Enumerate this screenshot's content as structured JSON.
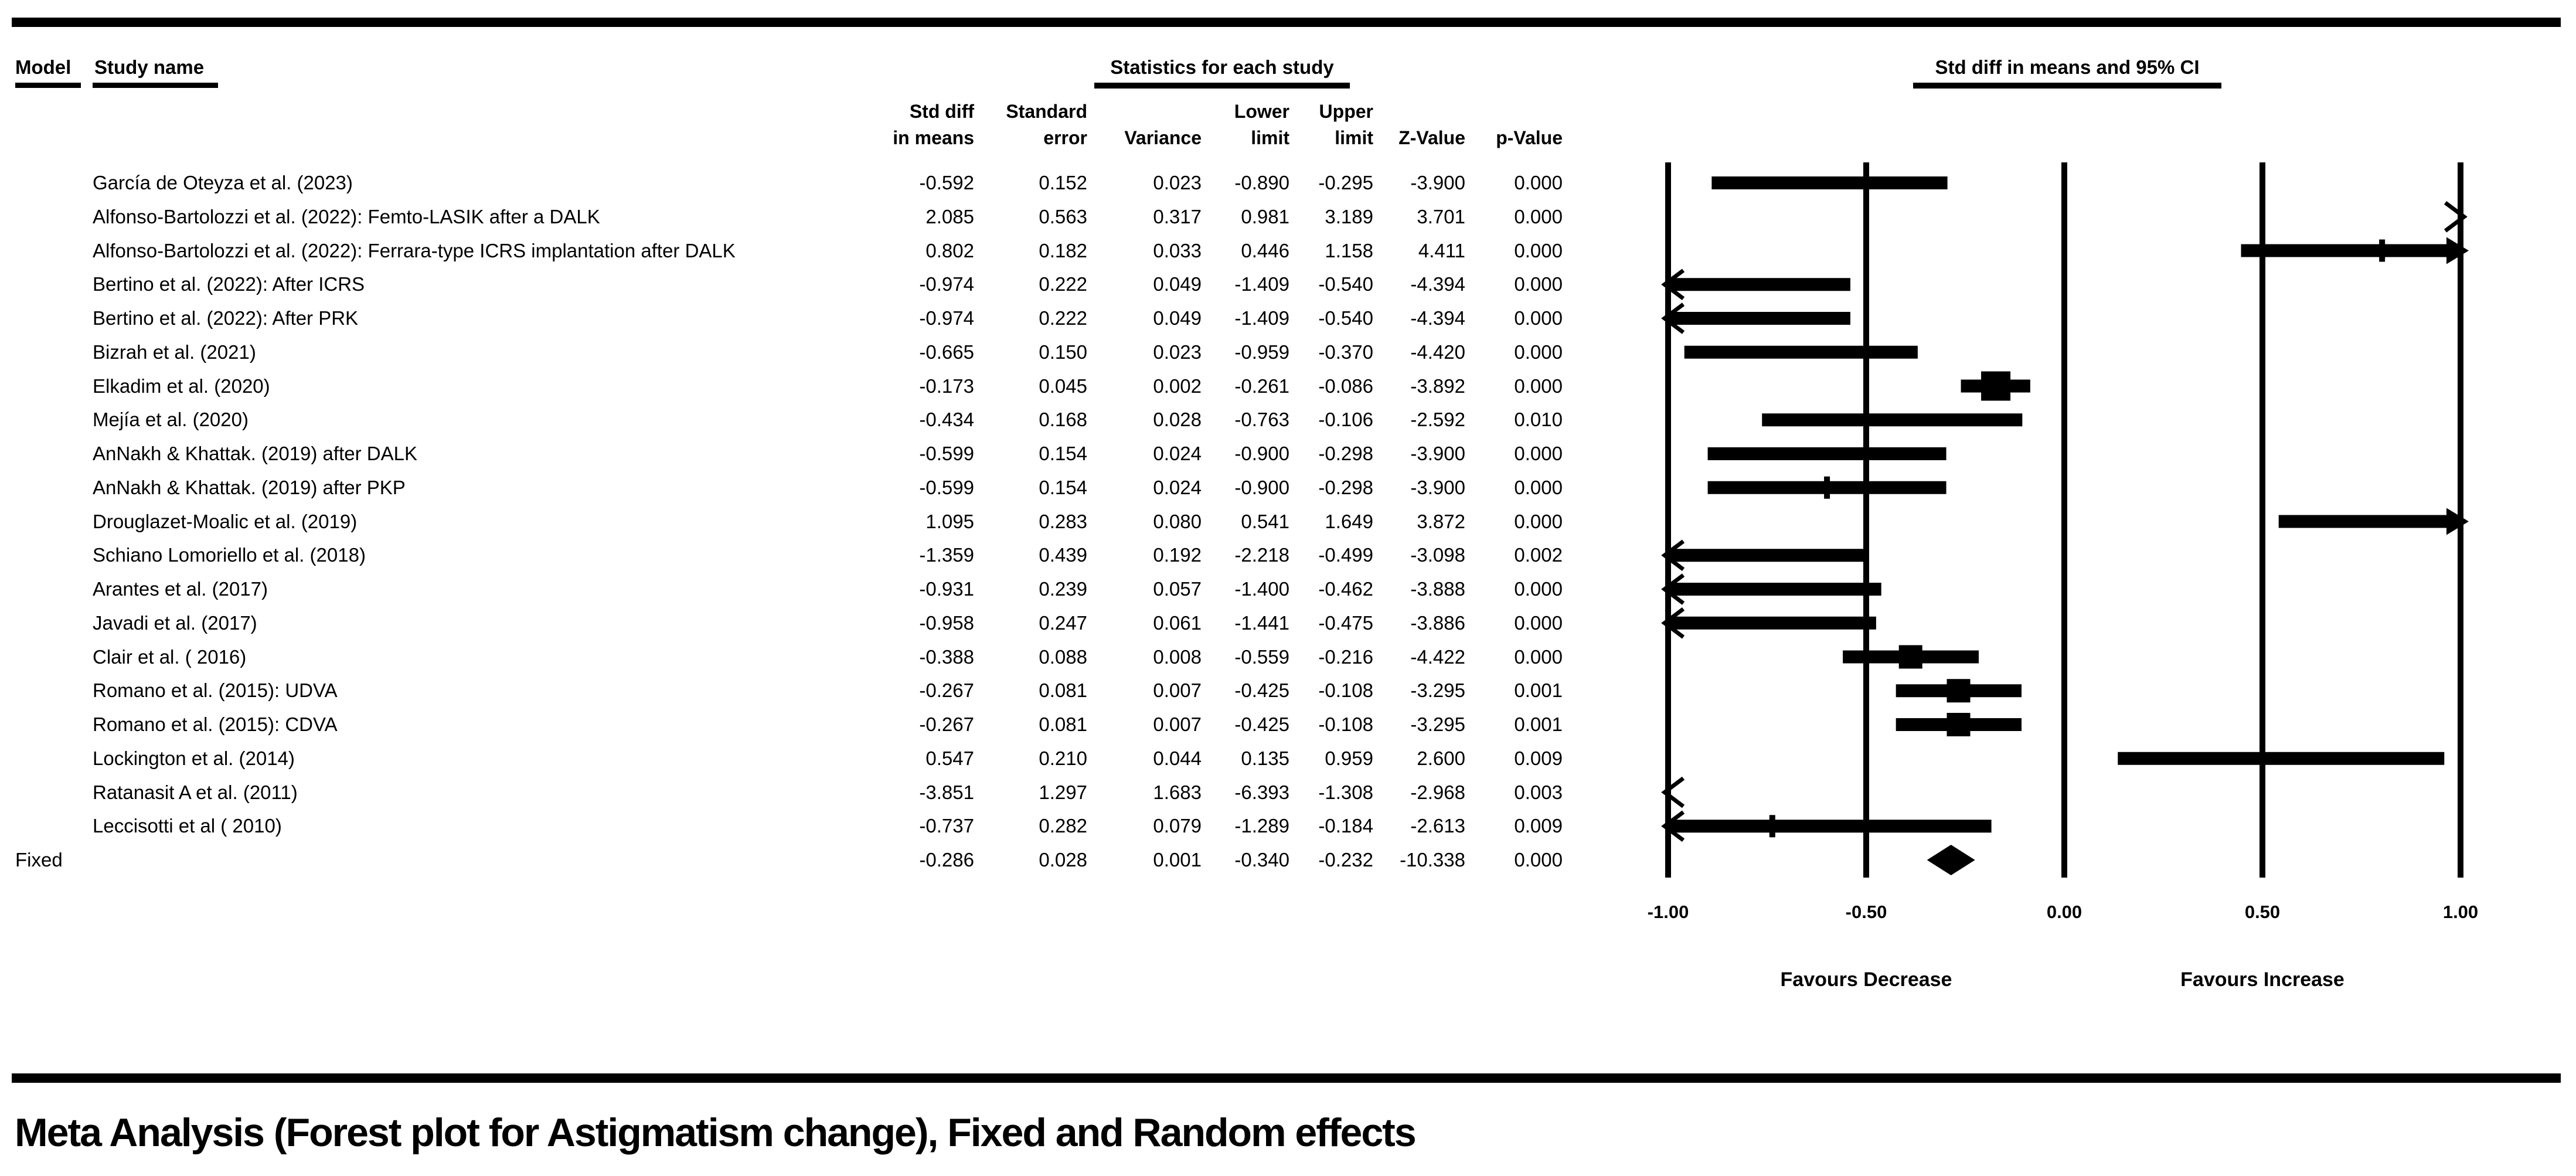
{
  "colors": {
    "ink": "#000000",
    "background": "#ffffff"
  },
  "header": {
    "model_label": "Model",
    "study_name_label": "Study name",
    "stats_group_label": "Statistics for each study",
    "ci_group_label": "Std diff in means and 95% CI"
  },
  "columns": [
    {
      "line1": "Std diff",
      "line2": "in means"
    },
    {
      "line1": "Standard",
      "line2": "error"
    },
    {
      "line1": "",
      "line2": "Variance"
    },
    {
      "line1": "Lower",
      "line2": "limit"
    },
    {
      "line1": "Upper",
      "line2": "limit"
    },
    {
      "line1": "",
      "line2": "Z-Value"
    },
    {
      "line1": "",
      "line2": "p-Value"
    }
  ],
  "studies": [
    {
      "name": "García de Oteyza et al. (2023)",
      "model_row": false,
      "shape": "bar",
      "marker": "none",
      "cells": [
        "-0.592",
        "0.152",
        "0.023",
        "-0.890",
        "-0.295",
        "-3.900",
        "0.000"
      ],
      "est": -0.592,
      "lo": -0.89,
      "hi": -0.295
    },
    {
      "name": "Alfonso-Bartolozzi et al. (2022): Femto-LASIK after a DALK",
      "model_row": false,
      "shape": "bar",
      "marker": "none",
      "cells": [
        "2.085",
        "0.563",
        "0.317",
        "0.981",
        "3.189",
        "3.701",
        "0.000"
      ],
      "est": 2.085,
      "lo": 0.981,
      "hi": 3.189
    },
    {
      "name": "Alfonso-Bartolozzi et al. (2022): Ferrara-type ICRS implantation after  DALK",
      "model_row": false,
      "shape": "bar",
      "marker": "tick",
      "cells": [
        "0.802",
        "0.182",
        "0.033",
        "0.446",
        "1.158",
        "4.411",
        "0.000"
      ],
      "est": 0.802,
      "lo": 0.446,
      "hi": 1.158
    },
    {
      "name": "Bertino et al. (2022): After ICRS",
      "model_row": false,
      "shape": "bar",
      "marker": "none",
      "cells": [
        "-0.974",
        "0.222",
        "0.049",
        "-1.409",
        "-0.540",
        "-4.394",
        "0.000"
      ],
      "est": -0.974,
      "lo": -1.409,
      "hi": -0.54
    },
    {
      "name": "Bertino et al. (2022): After PRK",
      "model_row": false,
      "shape": "bar",
      "marker": "none",
      "cells": [
        "-0.974",
        "0.222",
        "0.049",
        "-1.409",
        "-0.540",
        "-4.394",
        "0.000"
      ],
      "est": -0.974,
      "lo": -1.409,
      "hi": -0.54
    },
    {
      "name": "Bizrah et al. (2021)",
      "model_row": false,
      "shape": "bar",
      "marker": "none",
      "cells": [
        "-0.665",
        "0.150",
        "0.023",
        "-0.959",
        "-0.370",
        "-4.420",
        "0.000"
      ],
      "est": -0.665,
      "lo": -0.959,
      "hi": -0.37
    },
    {
      "name": "Elkadim et al. (2020)",
      "model_row": false,
      "shape": "bar",
      "marker": "large",
      "cells": [
        "-0.173",
        "0.045",
        "0.002",
        "-0.261",
        "-0.086",
        "-3.892",
        "0.000"
      ],
      "est": -0.173,
      "lo": -0.261,
      "hi": -0.086
    },
    {
      "name": "Mejía et al. (2020)",
      "model_row": false,
      "shape": "bar",
      "marker": "none",
      "cells": [
        "-0.434",
        "0.168",
        "0.028",
        "-0.763",
        "-0.106",
        "-2.592",
        "0.010"
      ],
      "est": -0.434,
      "lo": -0.763,
      "hi": -0.106
    },
    {
      "name": "AnNakh & Khattak. (2019) after DALK",
      "model_row": false,
      "shape": "bar",
      "marker": "none",
      "cells": [
        "-0.599",
        "0.154",
        "0.024",
        "-0.900",
        "-0.298",
        "-3.900",
        "0.000"
      ],
      "est": -0.599,
      "lo": -0.9,
      "hi": -0.298
    },
    {
      "name": "AnNakh & Khattak. (2019) after PKP",
      "model_row": false,
      "shape": "bar",
      "marker": "tick",
      "cells": [
        "-0.599",
        "0.154",
        "0.024",
        "-0.900",
        "-0.298",
        "-3.900",
        "0.000"
      ],
      "est": -0.599,
      "lo": -0.9,
      "hi": -0.298
    },
    {
      "name": "Drouglazet-Moalic et al. (2019)",
      "model_row": false,
      "shape": "bar",
      "marker": "none",
      "cells": [
        "1.095",
        "0.283",
        "0.080",
        "0.541",
        "1.649",
        "3.872",
        "0.000"
      ],
      "est": 1.095,
      "lo": 0.541,
      "hi": 1.649
    },
    {
      "name": "Schiano Lomoriello et al. (2018)",
      "model_row": false,
      "shape": "bar",
      "marker": "none",
      "cells": [
        "-1.359",
        "0.439",
        "0.192",
        "-2.218",
        "-0.499",
        "-3.098",
        "0.002"
      ],
      "est": -1.359,
      "lo": -2.218,
      "hi": -0.499
    },
    {
      "name": "Arantes et al. (2017)",
      "model_row": false,
      "shape": "bar",
      "marker": "none",
      "cells": [
        "-0.931",
        "0.239",
        "0.057",
        "-1.400",
        "-0.462",
        "-3.888",
        "0.000"
      ],
      "est": -0.931,
      "lo": -1.4,
      "hi": -0.462
    },
    {
      "name": "Javadi et al. (2017)",
      "model_row": false,
      "shape": "bar",
      "marker": "none",
      "cells": [
        "-0.958",
        "0.247",
        "0.061",
        "-1.441",
        "-0.475",
        "-3.886",
        "0.000"
      ],
      "est": -0.958,
      "lo": -1.441,
      "hi": -0.475
    },
    {
      "name": "Clair et al. ( 2016)",
      "model_row": false,
      "shape": "bar",
      "marker": "medium",
      "cells": [
        "-0.388",
        "0.088",
        "0.008",
        "-0.559",
        "-0.216",
        "-4.422",
        "0.000"
      ],
      "est": -0.388,
      "lo": -0.559,
      "hi": -0.216
    },
    {
      "name": "Romano et al. (2015): UDVA",
      "model_row": false,
      "shape": "bar",
      "marker": "medium",
      "cells": [
        "-0.267",
        "0.081",
        "0.007",
        "-0.425",
        "-0.108",
        "-3.295",
        "0.001"
      ],
      "est": -0.267,
      "lo": -0.425,
      "hi": -0.108
    },
    {
      "name": "Romano et al. (2015): CDVA",
      "model_row": false,
      "shape": "bar",
      "marker": "medium",
      "cells": [
        "-0.267",
        "0.081",
        "0.007",
        "-0.425",
        "-0.108",
        "-3.295",
        "0.001"
      ],
      "est": -0.267,
      "lo": -0.425,
      "hi": -0.108
    },
    {
      "name": "Lockington et al. (2014)",
      "model_row": false,
      "shape": "bar",
      "marker": "none",
      "cells": [
        "0.547",
        "0.210",
        "0.044",
        "0.135",
        "0.959",
        "2.600",
        "0.009"
      ],
      "est": 0.547,
      "lo": 0.135,
      "hi": 0.959
    },
    {
      "name": "Ratanasit A et al. (2011)",
      "model_row": false,
      "shape": "bar",
      "marker": "none",
      "cells": [
        "-3.851",
        "1.297",
        "1.683",
        "-6.393",
        "-1.308",
        "-2.968",
        "0.003"
      ],
      "est": -3.851,
      "lo": -6.393,
      "hi": -1.308
    },
    {
      "name": "Leccisotti et al ( 2010)",
      "model_row": false,
      "shape": "bar",
      "marker": "tick",
      "cells": [
        "-0.737",
        "0.282",
        "0.079",
        "-1.289",
        "-0.184",
        "-2.613",
        "0.009"
      ],
      "est": -0.737,
      "lo": -1.289,
      "hi": -0.184
    },
    {
      "name": "Fixed",
      "model_row": true,
      "shape": "diamond",
      "marker": "none",
      "cells": [
        "-0.286",
        "0.028",
        "0.001",
        "-0.340",
        "-0.232",
        "-10.338",
        "0.000"
      ],
      "est": -0.286,
      "lo": -0.34,
      "hi": -0.232
    }
  ],
  "axis": {
    "tick_values": [
      -1.0,
      -0.5,
      0.0,
      0.5,
      1.0
    ],
    "tick_labels": [
      "-1.00",
      "-0.50",
      "0.00",
      "0.50",
      "1.00"
    ],
    "favours_left": "Favours Decrease",
    "favours_right": "Favours Increase"
  },
  "title": "Meta Analysis (Forest plot for Astigmatism change), Fixed and Random effects",
  "chart_data": {
    "type": "forest",
    "title": "Meta Analysis (Forest plot for Astigmatism change), Fixed and Random effects",
    "effect_measure": "Std diff in means and 95% CI",
    "xlim": [
      -1.0,
      1.0
    ],
    "x_ticks": [
      -1.0,
      -0.5,
      0.0,
      0.5,
      1.0
    ],
    "x_tick_labels": [
      "-1.00",
      "-0.50",
      "0.00",
      "0.50",
      "1.00"
    ],
    "favours_left": "Favours Decrease",
    "favours_right": "Favours Increase",
    "grid": true,
    "studies": [
      {
        "name": "García de Oteyza et al. (2023)",
        "est": -0.592,
        "lo": -0.89,
        "hi": -0.295
      },
      {
        "name": "Alfonso-Bartolozzi et al. (2022): Femto-LASIK after a DALK",
        "est": 2.085,
        "lo": 0.981,
        "hi": 3.189
      },
      {
        "name": "Alfonso-Bartolozzi et al. (2022): Ferrara-type ICRS implantation after  DALK",
        "est": 0.802,
        "lo": 0.446,
        "hi": 1.158
      },
      {
        "name": "Bertino et al. (2022): After ICRS",
        "est": -0.974,
        "lo": -1.409,
        "hi": -0.54
      },
      {
        "name": "Bertino et al. (2022): After PRK",
        "est": -0.974,
        "lo": -1.409,
        "hi": -0.54
      },
      {
        "name": "Bizrah et al. (2021)",
        "est": -0.665,
        "lo": -0.959,
        "hi": -0.37
      },
      {
        "name": "Elkadim et al. (2020)",
        "est": -0.173,
        "lo": -0.261,
        "hi": -0.086
      },
      {
        "name": "Mejía et al. (2020)",
        "est": -0.434,
        "lo": -0.763,
        "hi": -0.106
      },
      {
        "name": "AnNakh & Khattak. (2019) after DALK",
        "est": -0.599,
        "lo": -0.9,
        "hi": -0.298
      },
      {
        "name": "AnNakh & Khattak. (2019) after PKP",
        "est": -0.599,
        "lo": -0.9,
        "hi": -0.298
      },
      {
        "name": "Drouglazet-Moalic et al. (2019)",
        "est": 1.095,
        "lo": 0.541,
        "hi": 1.649
      },
      {
        "name": "Schiano Lomoriello et al. (2018)",
        "est": -1.359,
        "lo": -2.218,
        "hi": -0.499
      },
      {
        "name": "Arantes et al. (2017)",
        "est": -0.931,
        "lo": -1.4,
        "hi": -0.462
      },
      {
        "name": "Javadi et al. (2017)",
        "est": -0.958,
        "lo": -1.441,
        "hi": -0.475
      },
      {
        "name": "Clair et al. ( 2016)",
        "est": -0.388,
        "lo": -0.559,
        "hi": -0.216
      },
      {
        "name": "Romano et al. (2015): UDVA",
        "est": -0.267,
        "lo": -0.425,
        "hi": -0.108
      },
      {
        "name": "Romano et al. (2015): CDVA",
        "est": -0.267,
        "lo": -0.425,
        "hi": -0.108
      },
      {
        "name": "Lockington et al. (2014)",
        "est": 0.547,
        "lo": 0.135,
        "hi": 0.959
      },
      {
        "name": "Ratanasit A et al. (2011)",
        "est": -3.851,
        "lo": -6.393,
        "hi": -1.308
      },
      {
        "name": "Leccisotti et al ( 2010)",
        "est": -0.737,
        "lo": -1.289,
        "hi": -0.184
      }
    ],
    "summary": {
      "name": "Fixed",
      "model": "Fixed",
      "est": -0.286,
      "lo": -0.34,
      "hi": -0.232
    }
  }
}
